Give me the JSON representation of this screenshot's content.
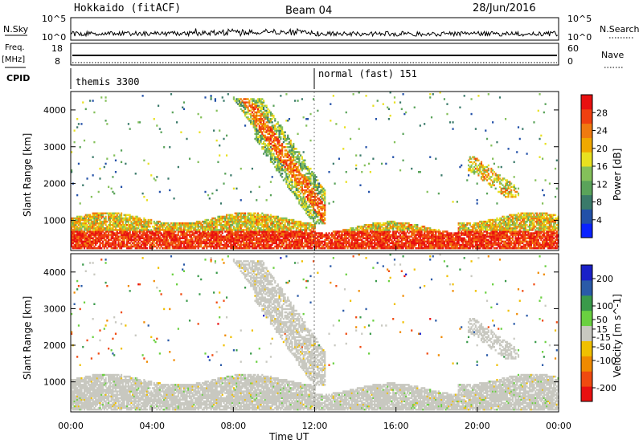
{
  "header": {
    "title": "Hokkaido (fitACF)",
    "beam": "Beam 04",
    "date": "28/Jun/2016"
  },
  "top_panels": {
    "nsky_label": "N.Sky",
    "nsearch_label": "N.Search",
    "nsky_ticks": [
      "10^5",
      "10^0"
    ],
    "nsearch_ticks": [
      "10^5",
      "10^0"
    ],
    "freq_label": "Freq.",
    "freq_unit": "[MHz]",
    "freq_ticks": [
      "18",
      "8"
    ],
    "nave_label": "Nave",
    "nave_ticks": [
      "60",
      "0"
    ],
    "cpid_label": "CPID",
    "cpid_segments": [
      {
        "name": "themis 3300",
        "start": "00:00",
        "end": "12:00"
      },
      {
        "name": "normal (fast) 151",
        "start": "12:00",
        "end": "24:00"
      }
    ]
  },
  "chart_data": [
    {
      "type": "heatmap",
      "parameter": "Power",
      "ylabel": "Slant Range [km]",
      "ylim": [
        180,
        4500
      ],
      "yticks": [
        1000,
        2000,
        3000,
        4000
      ],
      "xlim": [
        "00:00",
        "24:00"
      ],
      "colorbar": {
        "label": "Power [dB]",
        "range": [
          0,
          32
        ],
        "ticks": [
          4,
          8,
          12,
          16,
          20,
          24,
          28
        ],
        "colors": [
          "#0a22ff",
          "#2250a8",
          "#3a7a6a",
          "#5aa35a",
          "#84c05a",
          "#e8e020",
          "#f0a800",
          "#f07a10",
          "#f04010",
          "#e81010"
        ]
      },
      "features": [
        {
          "name": "near-range ground scatter band",
          "t_start": 0.0,
          "t_end": 24.0,
          "range_min": 200,
          "range_max": 1250,
          "power_db": 26
        },
        {
          "name": "diagonal echo 08-12UT",
          "t_start": 6.5,
          "t_end": 12.5,
          "range_min": 900,
          "range_max": 4300,
          "power_db": 22
        },
        {
          "name": "evening echo 20-22UT",
          "t_start": 19.5,
          "t_end": 22.0,
          "range_min": 1600,
          "range_max": 2700,
          "power_db": 20
        }
      ]
    },
    {
      "type": "heatmap",
      "parameter": "Velocity",
      "ylabel": "Slant Range [km]",
      "ylim": [
        180,
        4500
      ],
      "yticks": [
        1000,
        2000,
        3000,
        4000
      ],
      "xlim": [
        "00:00",
        "24:00"
      ],
      "xticks": [
        "00:00",
        "04:00",
        "08:00",
        "12:00",
        "16:00",
        "20:00",
        "00:00"
      ],
      "xlabel": "Time UT",
      "colorbar": {
        "label": "Velocity [m s^-1]",
        "range": [
          -250,
          250
        ],
        "ticks": [
          200,
          100,
          50,
          15,
          -15,
          -50,
          -100,
          -200
        ],
        "colors": [
          "#e81010",
          "#f04a10",
          "#f08a00",
          "#f0c000",
          "#c8c8c0",
          "#6ad040",
          "#3a9a4a",
          "#2a5aa8",
          "#1a20c8"
        ]
      },
      "features": [
        {
          "name": "ground scatter (grey)",
          "t_start": 0.0,
          "t_end": 24.0,
          "range_min": 200,
          "range_max": 1250,
          "velocity": 0
        },
        {
          "name": "diagonal echo 08-12UT",
          "t_start": 6.5,
          "t_end": 12.5,
          "range_min": 900,
          "range_max": 4300,
          "velocity": 0
        }
      ]
    }
  ]
}
